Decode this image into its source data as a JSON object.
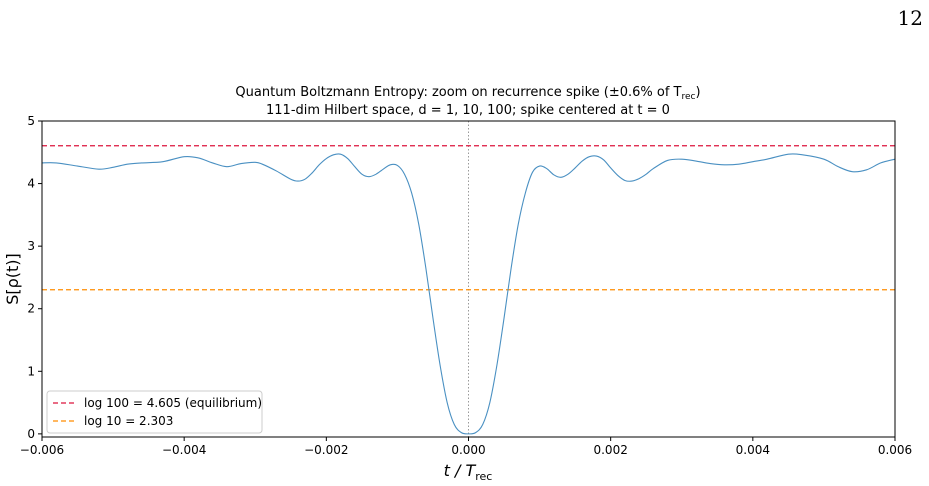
{
  "page": {
    "number": "12"
  },
  "chart_data": {
    "type": "line",
    "title": "Quantum Boltzmann Entropy: zoom on recurrence spike (±0.6% of T",
    "title_sub": "rec",
    "title_end": ")",
    "subtitle": "111-dim Hilbert space, d = 1, 10, 100; spike centered at t = 0",
    "xlabel": "t / T",
    "xlabel_sub": "rec",
    "ylabel": "S[ρ(t)]",
    "xlim": [
      -0.006,
      0.006
    ],
    "ylim": [
      -0.05,
      5
    ],
    "xticks": [
      -0.006,
      -0.004,
      -0.002,
      0.0,
      0.002,
      0.004,
      0.006
    ],
    "xtick_labels": [
      "−0.006",
      "−0.004",
      "−0.002",
      "0.000",
      "0.002",
      "0.004",
      "0.006"
    ],
    "yticks": [
      0,
      1,
      2,
      3,
      4,
      5
    ],
    "ytick_labels": [
      "0",
      "1",
      "2",
      "3",
      "4",
      "5"
    ],
    "vline_x": 0.0,
    "hlines": [
      {
        "name": "log 100 = 4.605 (equilibrium)",
        "y": 4.605,
        "color": "#dc143c",
        "style": "dashed"
      },
      {
        "name": "log 10 = 2.303",
        "y": 2.303,
        "color": "#ff8c00",
        "style": "dashed"
      }
    ],
    "series": [
      {
        "color": "#4a90c2",
        "x": [
          -0.006,
          -0.0058,
          -0.0055,
          -0.0052,
          -0.005,
          -0.0048,
          -0.0046,
          -0.0043,
          -0.004,
          -0.0038,
          -0.0036,
          -0.0034,
          -0.0032,
          -0.003,
          -0.0029,
          -0.0027,
          -0.0025,
          -0.0024,
          -0.0023,
          -0.0022,
          -0.0021,
          -0.002,
          -0.0019,
          -0.0018,
          -0.0017,
          -0.0016,
          -0.0015,
          -0.0014,
          -0.0013,
          -0.0012,
          -0.0011,
          -0.001,
          -0.0009,
          -0.0008,
          -0.0007,
          -0.0006,
          -0.0005,
          -0.0004,
          -0.0003,
          -0.0002,
          -0.0001,
          0.0,
          0.0001,
          0.0002,
          0.0003,
          0.0004,
          0.0005,
          0.0006,
          0.0007,
          0.0008,
          0.0009,
          0.001,
          0.0011,
          0.0012,
          0.0013,
          0.0014,
          0.0015,
          0.0016,
          0.0017,
          0.0018,
          0.0019,
          0.002,
          0.0021,
          0.0022,
          0.0023,
          0.0024,
          0.0025,
          0.0026,
          0.0028,
          0.003,
          0.0032,
          0.0034,
          0.0036,
          0.0038,
          0.004,
          0.0042,
          0.0045,
          0.0047,
          0.005,
          0.0052,
          0.0054,
          0.0056,
          0.0058,
          0.006
        ],
        "y": [
          4.33,
          4.33,
          4.28,
          4.23,
          4.26,
          4.31,
          4.33,
          4.35,
          4.43,
          4.41,
          4.33,
          4.27,
          4.32,
          4.34,
          4.31,
          4.2,
          4.07,
          4.04,
          4.07,
          4.17,
          4.3,
          4.4,
          4.46,
          4.47,
          4.4,
          4.27,
          4.15,
          4.11,
          4.15,
          4.23,
          4.3,
          4.29,
          4.15,
          3.85,
          3.35,
          2.65,
          1.85,
          1.1,
          0.5,
          0.15,
          0.02,
          0.0,
          0.02,
          0.15,
          0.5,
          1.1,
          1.85,
          2.65,
          3.35,
          3.85,
          4.18,
          4.28,
          4.24,
          4.14,
          4.1,
          4.15,
          4.25,
          4.36,
          4.43,
          4.44,
          4.38,
          4.25,
          4.13,
          4.05,
          4.04,
          4.08,
          4.15,
          4.24,
          4.37,
          4.39,
          4.36,
          4.32,
          4.3,
          4.31,
          4.35,
          4.39,
          4.47,
          4.46,
          4.39,
          4.27,
          4.19,
          4.22,
          4.33,
          4.39
        ]
      }
    ],
    "legend_position": "lower-left"
  }
}
